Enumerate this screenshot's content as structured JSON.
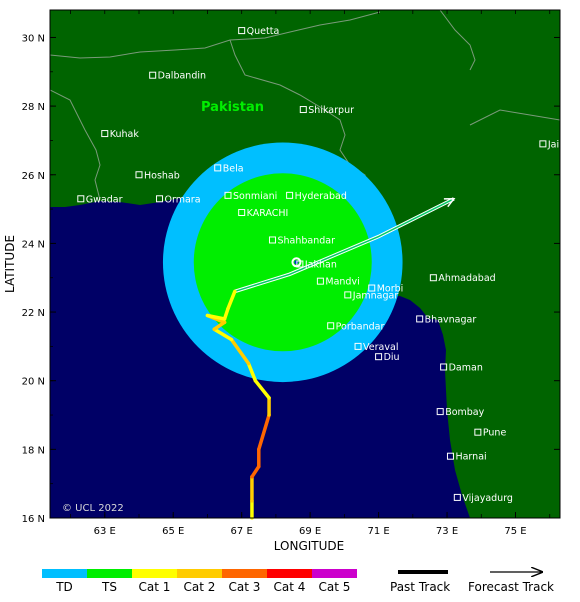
{
  "map": {
    "xlabel": "LONGITUDE",
    "ylabel": "LATITUDE",
    "x_ticks": [
      "63 E",
      "65 E",
      "67 E",
      "69 E",
      "71 E",
      "73 E",
      "75 E"
    ],
    "y_ticks": [
      "30 N",
      "28 N",
      "26 N",
      "24 N",
      "22 N",
      "20 N",
      "18 N",
      "16 N"
    ],
    "country": "Pakistan",
    "copyright": "© UCL 2022",
    "cities": [
      {
        "name": "Quetta",
        "lon": 67.0,
        "lat": 30.2
      },
      {
        "name": "Dalbandin",
        "lon": 64.4,
        "lat": 28.9
      },
      {
        "name": "Shikarpur",
        "lon": 68.8,
        "lat": 27.9
      },
      {
        "name": "Kuhak",
        "lon": 63.0,
        "lat": 27.2
      },
      {
        "name": "Jaipur",
        "lon": 75.8,
        "lat": 26.9
      },
      {
        "name": "Hoshab",
        "lon": 64.0,
        "lat": 26.0
      },
      {
        "name": "Bela",
        "lon": 66.3,
        "lat": 26.2
      },
      {
        "name": "Gwadar",
        "lon": 62.3,
        "lat": 25.3
      },
      {
        "name": "Ormara",
        "lon": 64.6,
        "lat": 25.3
      },
      {
        "name": "Sonmiani",
        "lon": 66.6,
        "lat": 25.4
      },
      {
        "name": "Hyderabad",
        "lon": 68.4,
        "lat": 25.4
      },
      {
        "name": "KARACHI",
        "lon": 67.0,
        "lat": 24.9
      },
      {
        "name": "Shahbandar",
        "lon": 67.9,
        "lat": 24.1
      },
      {
        "name": "Jakhan",
        "lon": 68.7,
        "lat": 23.4
      },
      {
        "name": "Ahmadabad",
        "lon": 72.6,
        "lat": 23.0
      },
      {
        "name": "Mandvi",
        "lon": 69.3,
        "lat": 22.9
      },
      {
        "name": "Morbi",
        "lon": 70.8,
        "lat": 22.7
      },
      {
        "name": "Jamnagar",
        "lon": 70.1,
        "lat": 22.5
      },
      {
        "name": "Bhavnagar",
        "lon": 72.2,
        "lat": 21.8
      },
      {
        "name": "Porbandar",
        "lon": 69.6,
        "lat": 21.6
      },
      {
        "name": "Veraval",
        "lon": 70.4,
        "lat": 21.0
      },
      {
        "name": "Diu",
        "lon": 71.0,
        "lat": 20.7
      },
      {
        "name": "Daman",
        "lon": 72.9,
        "lat": 20.4
      },
      {
        "name": "Bombay",
        "lon": 72.8,
        "lat": 19.1
      },
      {
        "name": "Pune",
        "lon": 73.9,
        "lat": 18.5
      },
      {
        "name": "Harnai",
        "lon": 73.1,
        "lat": 17.8
      },
      {
        "name": "Vijayadurg",
        "lon": 73.3,
        "lat": 16.6
      }
    ],
    "past_track": [
      {
        "lon": 67.3,
        "lat": 16.0,
        "cat": "TS"
      },
      {
        "lon": 67.3,
        "lat": 16.5,
        "cat": "Cat 1"
      },
      {
        "lon": 67.3,
        "lat": 17.2,
        "cat": "Cat 2"
      },
      {
        "lon": 67.5,
        "lat": 17.5,
        "cat": "Cat 3"
      },
      {
        "lon": 67.5,
        "lat": 18.0,
        "cat": "Cat 3"
      },
      {
        "lon": 67.8,
        "lat": 19.0,
        "cat": "Cat 3"
      },
      {
        "lon": 67.8,
        "lat": 19.5,
        "cat": "Cat 2"
      },
      {
        "lon": 67.4,
        "lat": 20.0,
        "cat": "Cat 1"
      },
      {
        "lon": 67.2,
        "lat": 20.5,
        "cat": "Cat 1"
      },
      {
        "lon": 66.7,
        "lat": 21.2,
        "cat": "Cat 2"
      },
      {
        "lon": 66.2,
        "lat": 21.5,
        "cat": "Cat 1"
      },
      {
        "lon": 66.5,
        "lat": 21.7,
        "cat": "Cat 2"
      },
      {
        "lon": 66.0,
        "lat": 21.9,
        "cat": "Cat 2"
      },
      {
        "lon": 66.5,
        "lat": 21.8,
        "cat": "Cat 1"
      },
      {
        "lon": 66.6,
        "lat": 22.1,
        "cat": "Cat 1"
      },
      {
        "lon": 66.8,
        "lat": 22.6,
        "cat": "Cat 1"
      }
    ],
    "forecast_track": [
      {
        "lon": 66.8,
        "lat": 22.6
      },
      {
        "lon": 68.4,
        "lat": 23.1
      },
      {
        "lon": 71.0,
        "lat": 24.2
      },
      {
        "lon": 73.2,
        "lat": 25.3
      }
    ],
    "storm_center": {
      "lon": 68.6,
      "lat": 23.45
    },
    "wind_zones": [
      {
        "cat": "TD",
        "radius_deg": 3.5
      },
      {
        "cat": "TS",
        "radius_deg": 2.6
      }
    ]
  },
  "legend": {
    "categories": [
      {
        "label": "TD",
        "color": "#00bfff"
      },
      {
        "label": "TS",
        "color": "#00ee00"
      },
      {
        "label": "Cat 1",
        "color": "#ffff00"
      },
      {
        "label": "Cat 2",
        "color": "#ffcc00"
      },
      {
        "label": "Cat 3",
        "color": "#ff6600"
      },
      {
        "label": "Cat 4",
        "color": "#ff0000"
      },
      {
        "label": "Cat 5",
        "color": "#cc00cc"
      }
    ],
    "past_track_label": "Past Track",
    "forecast_track_label": "Forecast Track"
  },
  "colors": {
    "land": "#006400",
    "sea": "#000066",
    "border": "#7a9a7a"
  }
}
